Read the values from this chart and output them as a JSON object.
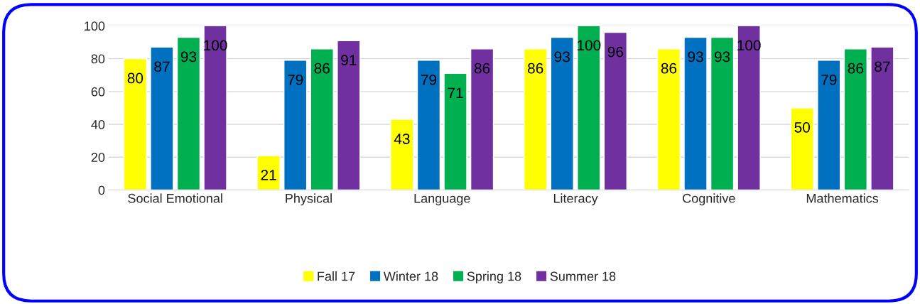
{
  "chart_data": {
    "type": "bar",
    "categories": [
      "Social Emotional",
      "Physical",
      "Language",
      "Literacy",
      "Cognitive",
      "Mathematics"
    ],
    "series": [
      {
        "name": "Fall 17",
        "color": "#ffff00",
        "values": [
          80,
          21,
          43,
          86,
          86,
          50
        ]
      },
      {
        "name": "Winter 18",
        "color": "#0070c0",
        "values": [
          87,
          79,
          79,
          93,
          93,
          79
        ]
      },
      {
        "name": "Spring 18",
        "color": "#00b050",
        "values": [
          93,
          86,
          71,
          100,
          93,
          86
        ]
      },
      {
        "name": "Summer 18",
        "color": "#7030a0",
        "values": [
          100,
          91,
          86,
          96,
          100,
          87
        ]
      }
    ],
    "ylim": [
      0,
      100
    ],
    "yticks": [
      0,
      20,
      40,
      60,
      80,
      100
    ],
    "grid": "y",
    "legend": "bottom",
    "data_labels": true
  }
}
